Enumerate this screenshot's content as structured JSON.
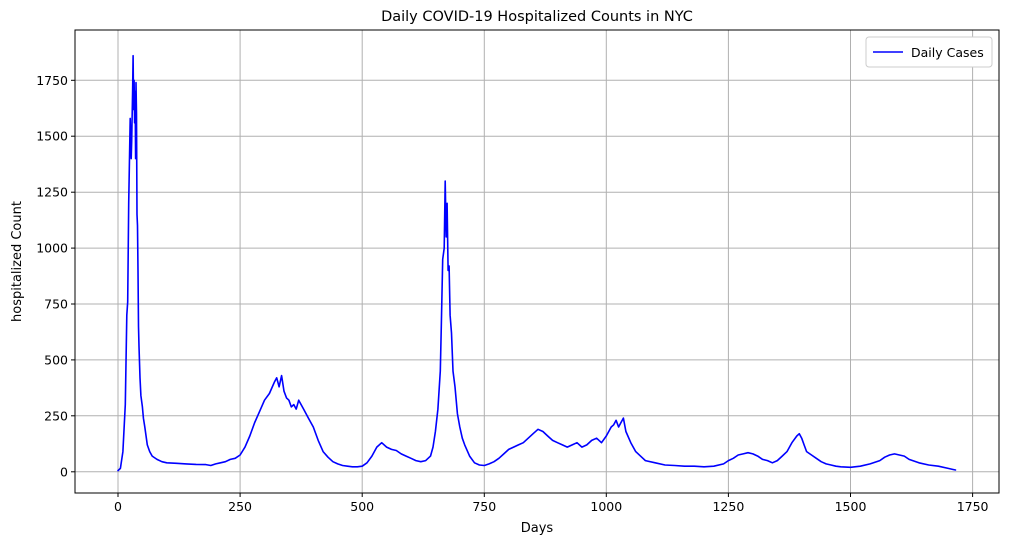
{
  "chart_data": {
    "type": "line",
    "title": "Daily COVID-19 Hospitalized Counts in NYC",
    "xlabel": "Days",
    "ylabel": "hospitalized Count",
    "xlim": [
      -88,
      1804
    ],
    "ylim": [
      -95,
      1975
    ],
    "xticks": [
      0,
      250,
      500,
      750,
      1000,
      1250,
      1500,
      1750
    ],
    "xtick_labels": [
      "0",
      "250",
      "500",
      "750",
      "1000",
      "1250",
      "1500",
      "1750"
    ],
    "yticks": [
      0,
      250,
      500,
      750,
      1000,
      1250,
      1500,
      1750
    ],
    "ytick_labels": [
      "0",
      "250",
      "500",
      "750",
      "1000",
      "1250",
      "1500",
      "1750"
    ],
    "grid": true,
    "legend_position": "top-right",
    "series": [
      {
        "name": "Daily Cases",
        "color": "#0000ff",
        "x": [
          0,
          5,
          10,
          15,
          18,
          20,
          22,
          25,
          27,
          28,
          30,
          31,
          32,
          33,
          34,
          35,
          36,
          37,
          38,
          39,
          40,
          41,
          42,
          43,
          45,
          47,
          50,
          52,
          55,
          60,
          65,
          70,
          80,
          90,
          100,
          120,
          140,
          160,
          180,
          190,
          200,
          210,
          220,
          230,
          240,
          250,
          260,
          270,
          280,
          290,
          300,
          310,
          320,
          325,
          330,
          335,
          340,
          345,
          350,
          355,
          360,
          365,
          370,
          380,
          390,
          400,
          410,
          420,
          430,
          440,
          450,
          460,
          470,
          480,
          490,
          500,
          510,
          520,
          530,
          540,
          550,
          560,
          570,
          580,
          590,
          600,
          610,
          620,
          630,
          640,
          645,
          650,
          655,
          660,
          662,
          665,
          668,
          670,
          672,
          674,
          676,
          678,
          680,
          683,
          686,
          690,
          695,
          700,
          705,
          710,
          720,
          730,
          740,
          750,
          760,
          770,
          780,
          790,
          800,
          810,
          820,
          830,
          840,
          850,
          860,
          870,
          880,
          890,
          900,
          910,
          920,
          930,
          940,
          950,
          960,
          970,
          980,
          990,
          1000,
          1010,
          1015,
          1020,
          1025,
          1030,
          1035,
          1040,
          1050,
          1060,
          1070,
          1080,
          1100,
          1120,
          1140,
          1160,
          1180,
          1200,
          1220,
          1240,
          1250,
          1260,
          1270,
          1280,
          1290,
          1300,
          1310,
          1320,
          1330,
          1340,
          1350,
          1360,
          1370,
          1380,
          1390,
          1395,
          1400,
          1405,
          1410,
          1420,
          1430,
          1440,
          1450,
          1460,
          1470,
          1480,
          1500,
          1520,
          1540,
          1560,
          1570,
          1580,
          1590,
          1600,
          1610,
          1620,
          1640,
          1660,
          1680,
          1700,
          1710,
          1715
        ],
        "y": [
          5,
          15,
          90,
          300,
          700,
          760,
          1200,
          1580,
          1400,
          1480,
          1700,
          1860,
          1620,
          1750,
          1560,
          1700,
          1400,
          1740,
          1600,
          1150,
          1100,
          900,
          650,
          560,
          420,
          340,
          290,
          240,
          200,
          120,
          90,
          70,
          55,
          45,
          40,
          38,
          35,
          33,
          32,
          28,
          35,
          40,
          45,
          55,
          60,
          75,
          110,
          160,
          220,
          270,
          320,
          350,
          400,
          420,
          380,
          430,
          360,
          330,
          320,
          290,
          300,
          280,
          320,
          280,
          240,
          200,
          140,
          90,
          65,
          45,
          35,
          28,
          25,
          22,
          22,
          25,
          40,
          70,
          110,
          130,
          110,
          100,
          95,
          80,
          70,
          60,
          50,
          45,
          50,
          70,
          110,
          180,
          280,
          450,
          650,
          950,
          1000,
          1300,
          1050,
          1200,
          900,
          920,
          700,
          620,
          450,
          380,
          260,
          200,
          150,
          120,
          70,
          40,
          30,
          28,
          35,
          45,
          60,
          80,
          100,
          110,
          120,
          130,
          150,
          170,
          190,
          180,
          160,
          140,
          130,
          120,
          110,
          120,
          130,
          110,
          120,
          140,
          150,
          130,
          160,
          200,
          210,
          230,
          200,
          220,
          240,
          180,
          130,
          90,
          70,
          50,
          40,
          30,
          28,
          25,
          25,
          22,
          25,
          35,
          50,
          60,
          75,
          80,
          85,
          80,
          70,
          55,
          50,
          40,
          50,
          70,
          90,
          130,
          160,
          170,
          150,
          120,
          90,
          75,
          60,
          45,
          35,
          30,
          25,
          22,
          20,
          25,
          35,
          50,
          65,
          75,
          80,
          75,
          70,
          55,
          40,
          30,
          25,
          15,
          10,
          8
        ]
      }
    ]
  }
}
